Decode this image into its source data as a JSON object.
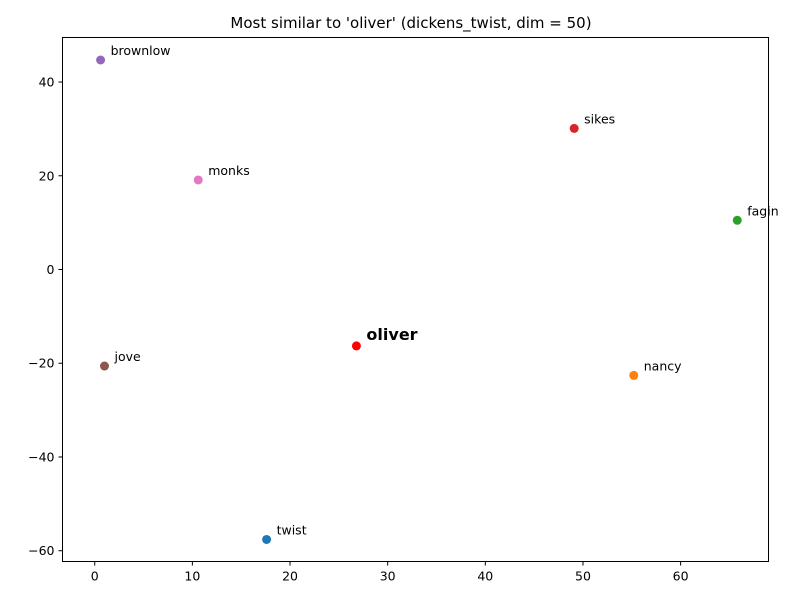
{
  "chart_data": {
    "type": "scatter",
    "title": "Most similar to 'oliver' (dickens_twist, dim = 50)",
    "xlabel": "",
    "ylabel": "",
    "xlim": [
      -3.3,
      69
    ],
    "ylim": [
      -62.3,
      49.5
    ],
    "grid": false,
    "xticks": [
      0,
      10,
      20,
      30,
      40,
      50,
      60
    ],
    "yticks": [
      -60,
      -40,
      -20,
      0,
      20,
      40
    ],
    "points": [
      {
        "label": "oliver",
        "x": 26.8,
        "y": -16.3,
        "color": "#ff0000",
        "highlight": true
      },
      {
        "label": "twist",
        "x": 17.6,
        "y": -57.6,
        "color": "#1f77b4"
      },
      {
        "label": "nancy",
        "x": 55.2,
        "y": -22.6,
        "color": "#ff7f0e"
      },
      {
        "label": "fagin",
        "x": 65.8,
        "y": 10.5,
        "color": "#2ca02c"
      },
      {
        "label": "sikes",
        "x": 49.1,
        "y": 30.1,
        "color": "#d62728"
      },
      {
        "label": "brownlow",
        "x": 0.6,
        "y": 44.7,
        "color": "#9467bd"
      },
      {
        "label": "jove",
        "x": 1.0,
        "y": -20.6,
        "color": "#8c564b"
      },
      {
        "label": "monks",
        "x": 10.6,
        "y": 19.1,
        "color": "#e377c2"
      }
    ]
  }
}
